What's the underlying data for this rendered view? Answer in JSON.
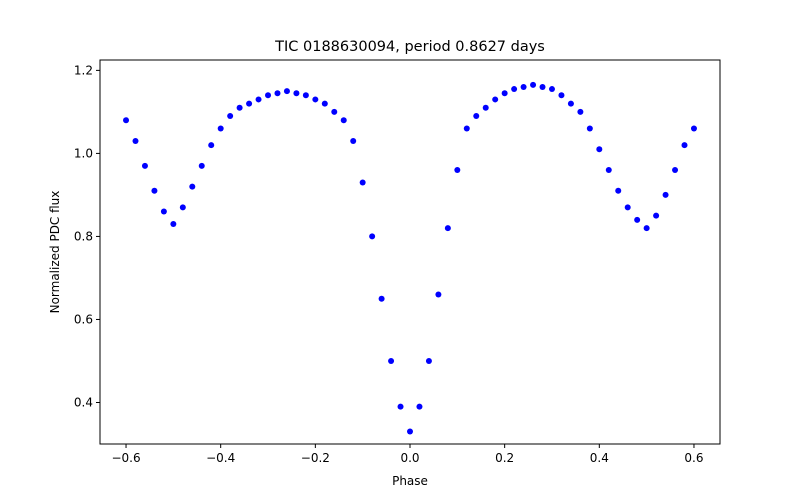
{
  "chart_data": {
    "type": "scatter",
    "title": "TIC 0188630094, period 0.8627 days",
    "xlabel": "Phase",
    "ylabel": "Normalized PDC flux",
    "xlim": [
      -0.655,
      0.655
    ],
    "ylim": [
      0.3,
      1.225
    ],
    "xticks": [
      -0.6,
      -0.4,
      -0.2,
      0.0,
      0.2,
      0.4,
      0.6
    ],
    "xtick_labels": [
      "−0.6",
      "−0.4",
      "−0.2",
      "0.0",
      "0.2",
      "0.4",
      "0.6"
    ],
    "yticks": [
      0.4,
      0.6,
      0.8,
      1.0,
      1.2
    ],
    "ytick_labels": [
      "0.4",
      "0.6",
      "0.8",
      "1.0",
      "1.2"
    ],
    "grid": false,
    "legend": "none",
    "marker_color": "#0000ff",
    "series": [
      {
        "x": [
          -0.6,
          -0.58,
          -0.56,
          -0.54,
          -0.52,
          -0.5,
          -0.48,
          -0.46,
          -0.44,
          -0.42,
          -0.4,
          -0.38,
          -0.36,
          -0.34,
          -0.32,
          -0.3,
          -0.28,
          -0.26,
          -0.24,
          -0.22,
          -0.2,
          -0.18,
          -0.16,
          -0.14,
          -0.12,
          -0.1,
          -0.08,
          -0.06,
          -0.04,
          -0.02,
          0.0,
          0.02,
          0.04,
          0.06,
          0.08,
          0.1,
          0.12,
          0.14,
          0.16,
          0.18,
          0.2,
          0.22,
          0.24,
          0.26,
          0.28,
          0.3,
          0.32,
          0.34,
          0.36,
          0.38,
          0.4,
          0.42,
          0.44,
          0.46,
          0.48,
          0.5,
          0.52,
          0.54,
          0.56,
          0.58,
          0.6
        ],
        "y": [
          1.08,
          1.03,
          0.97,
          0.91,
          0.86,
          0.83,
          0.87,
          0.92,
          0.97,
          1.02,
          1.06,
          1.09,
          1.11,
          1.12,
          1.13,
          1.14,
          1.145,
          1.15,
          1.145,
          1.14,
          1.13,
          1.12,
          1.1,
          1.08,
          1.03,
          0.93,
          0.8,
          0.65,
          0.5,
          0.39,
          0.33,
          0.39,
          0.5,
          0.66,
          0.82,
          0.96,
          1.06,
          1.09,
          1.11,
          1.13,
          1.145,
          1.155,
          1.16,
          1.165,
          1.16,
          1.155,
          1.14,
          1.12,
          1.1,
          1.06,
          1.01,
          0.96,
          0.91,
          0.87,
          0.84,
          0.82,
          0.85,
          0.9,
          0.96,
          1.02,
          1.06
        ]
      }
    ]
  }
}
